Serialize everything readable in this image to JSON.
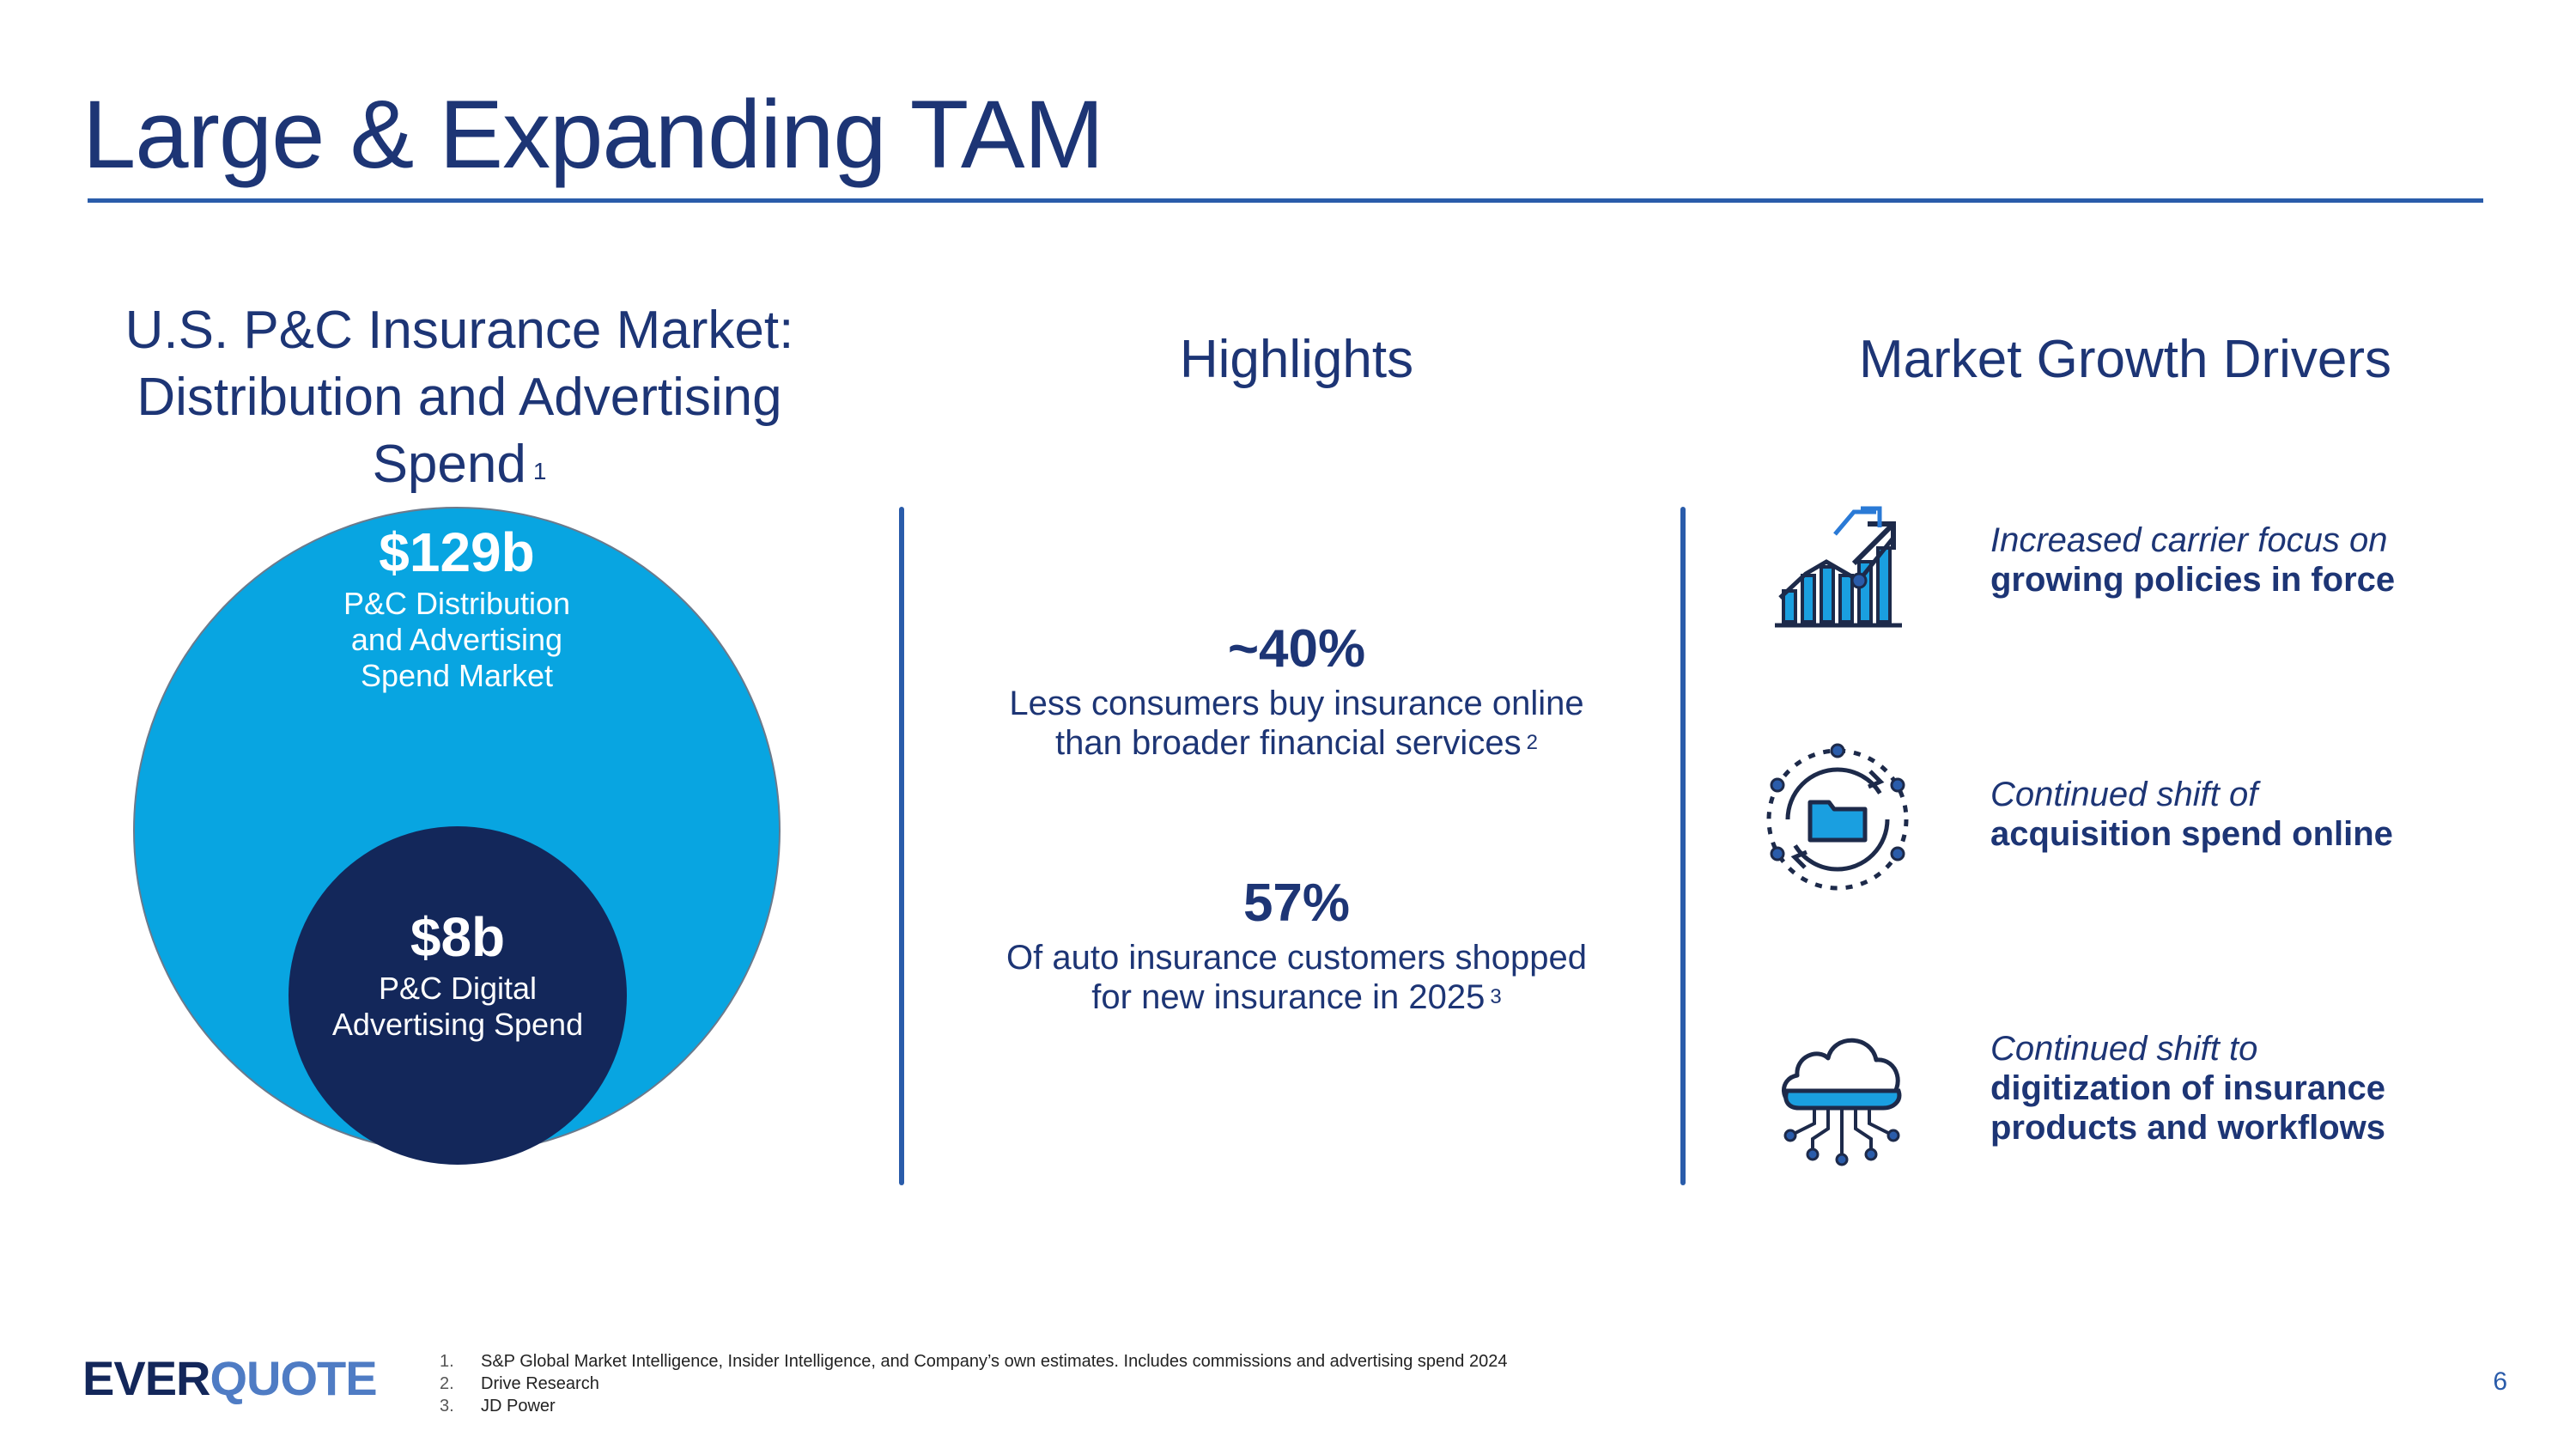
{
  "title": "Large & Expanding TAM",
  "left": {
    "heading_lines": [
      "U.S. P&C Insurance Market:",
      "Distribution and Advertising",
      "Spend"
    ],
    "heading_sup": "1",
    "outer": {
      "value": "$129b",
      "label_lines": [
        "P&C Distribution",
        "and Advertising",
        "Spend Market"
      ]
    },
    "inner": {
      "value": "$8b",
      "label_lines": [
        "P&C Digital",
        "Advertising Spend"
      ]
    },
    "colors": {
      "outer": "#08a5e1",
      "inner": "#13275a"
    }
  },
  "highlights": {
    "heading": "Highlights",
    "items": [
      {
        "value": "~40%",
        "desc_lines": [
          "Less consumers buy insurance online",
          "than broader financial services"
        ],
        "sup": "2"
      },
      {
        "value": "57%",
        "desc_lines": [
          "Of auto insurance customers shopped",
          "for new insurance in 2025"
        ],
        "sup": "3"
      }
    ]
  },
  "drivers": {
    "heading": "Market Growth Drivers",
    "items": [
      {
        "icon": "growth-chart-icon",
        "italic": "Increased carrier focus on",
        "bold_lines": [
          "growing policies in force"
        ]
      },
      {
        "icon": "folder-cycle-icon",
        "italic": "Continued shift of",
        "bold_lines": [
          "acquisition spend online"
        ]
      },
      {
        "icon": "cloud-network-icon",
        "italic": "Continued shift to",
        "bold_lines": [
          "digitization of insurance",
          "products and workflows"
        ]
      }
    ]
  },
  "logo": {
    "part1": "EVER",
    "part2": "QUOTE"
  },
  "footnotes": [
    {
      "n": "1.",
      "text": "S&P Global Market Intelligence, Insider Intelligence, and Company’s own estimates. Includes commissions and advertising spend 2024"
    },
    {
      "n": "2.",
      "text": "Drive Research"
    },
    {
      "n": "3.",
      "text": "JD Power"
    }
  ],
  "page_number": "6",
  "accent_color": "#2a5caa",
  "text_color": "#1d3575"
}
